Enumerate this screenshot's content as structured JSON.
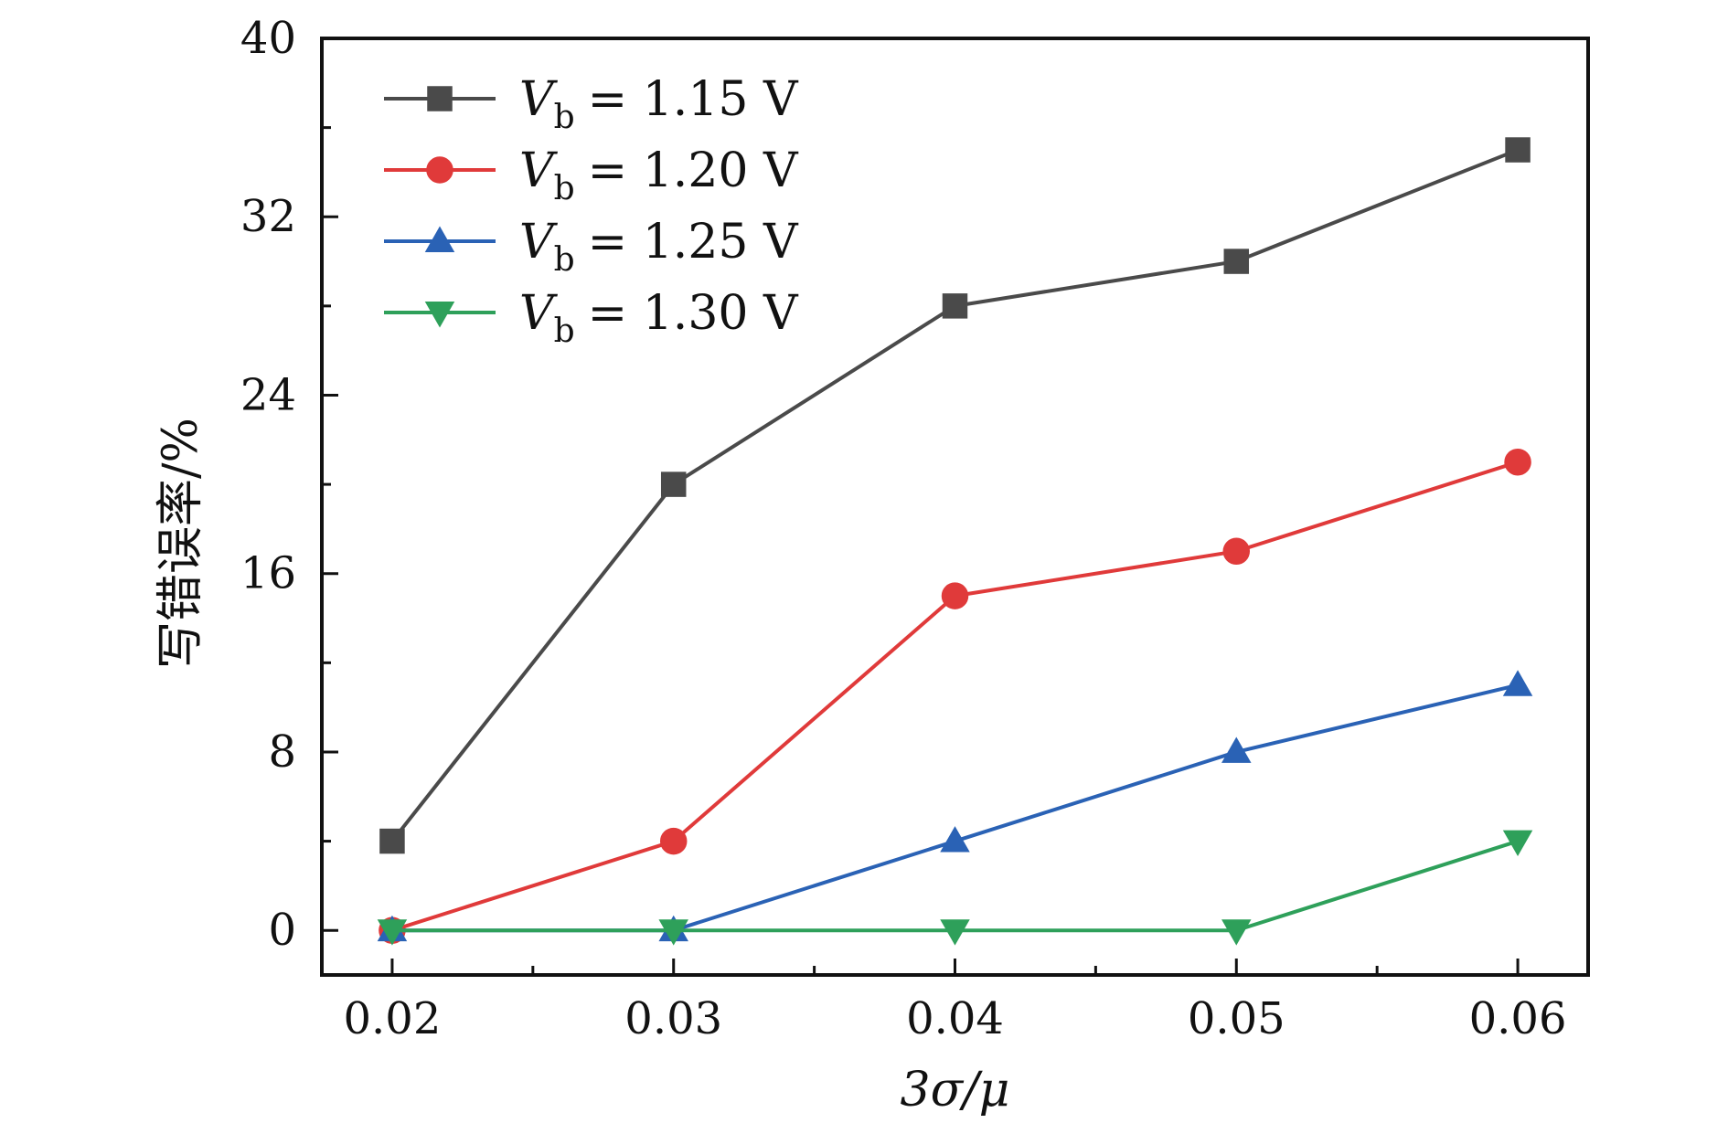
{
  "chart_data": {
    "type": "line",
    "xlabel": "3σ/μ",
    "ylabel": "写错误率/%",
    "x": [
      0.02,
      0.03,
      0.04,
      0.05,
      0.06
    ],
    "x_tick_labels": [
      "0.02",
      "0.03",
      "0.04",
      "0.05",
      "0.06"
    ],
    "xlim": [
      0.0175,
      0.0625
    ],
    "ylim": [
      -2,
      40
    ],
    "y_ticks": [
      0,
      8,
      16,
      24,
      32,
      40
    ],
    "y_tick_labels": [
      "0",
      "8",
      "16",
      "24",
      "32",
      "40"
    ],
    "legend_position": "top-left",
    "grid": false,
    "series": [
      {
        "name": "Vb = 1.15 V",
        "var": "V",
        "sub": "b",
        "value_text": "= 1.15 V",
        "color": "#4a4a4a",
        "marker": "square",
        "values": [
          4,
          20,
          28,
          30,
          35
        ]
      },
      {
        "name": "Vb = 1.20 V",
        "var": "V",
        "sub": "b",
        "value_text": "= 1.20 V",
        "color": "#e03a3a",
        "marker": "circle",
        "values": [
          0,
          4,
          15,
          17,
          21
        ]
      },
      {
        "name": "Vb = 1.25 V",
        "var": "V",
        "sub": "b",
        "value_text": "= 1.25 V",
        "color": "#2a62b5",
        "marker": "triangle-up",
        "values": [
          0,
          0,
          4,
          8,
          11
        ]
      },
      {
        "name": "Vb = 1.30 V",
        "var": "V",
        "sub": "b",
        "value_text": "= 1.30 V",
        "color": "#2ea05a",
        "marker": "triangle-down",
        "values": [
          0,
          0,
          0,
          0,
          4
        ]
      }
    ]
  }
}
